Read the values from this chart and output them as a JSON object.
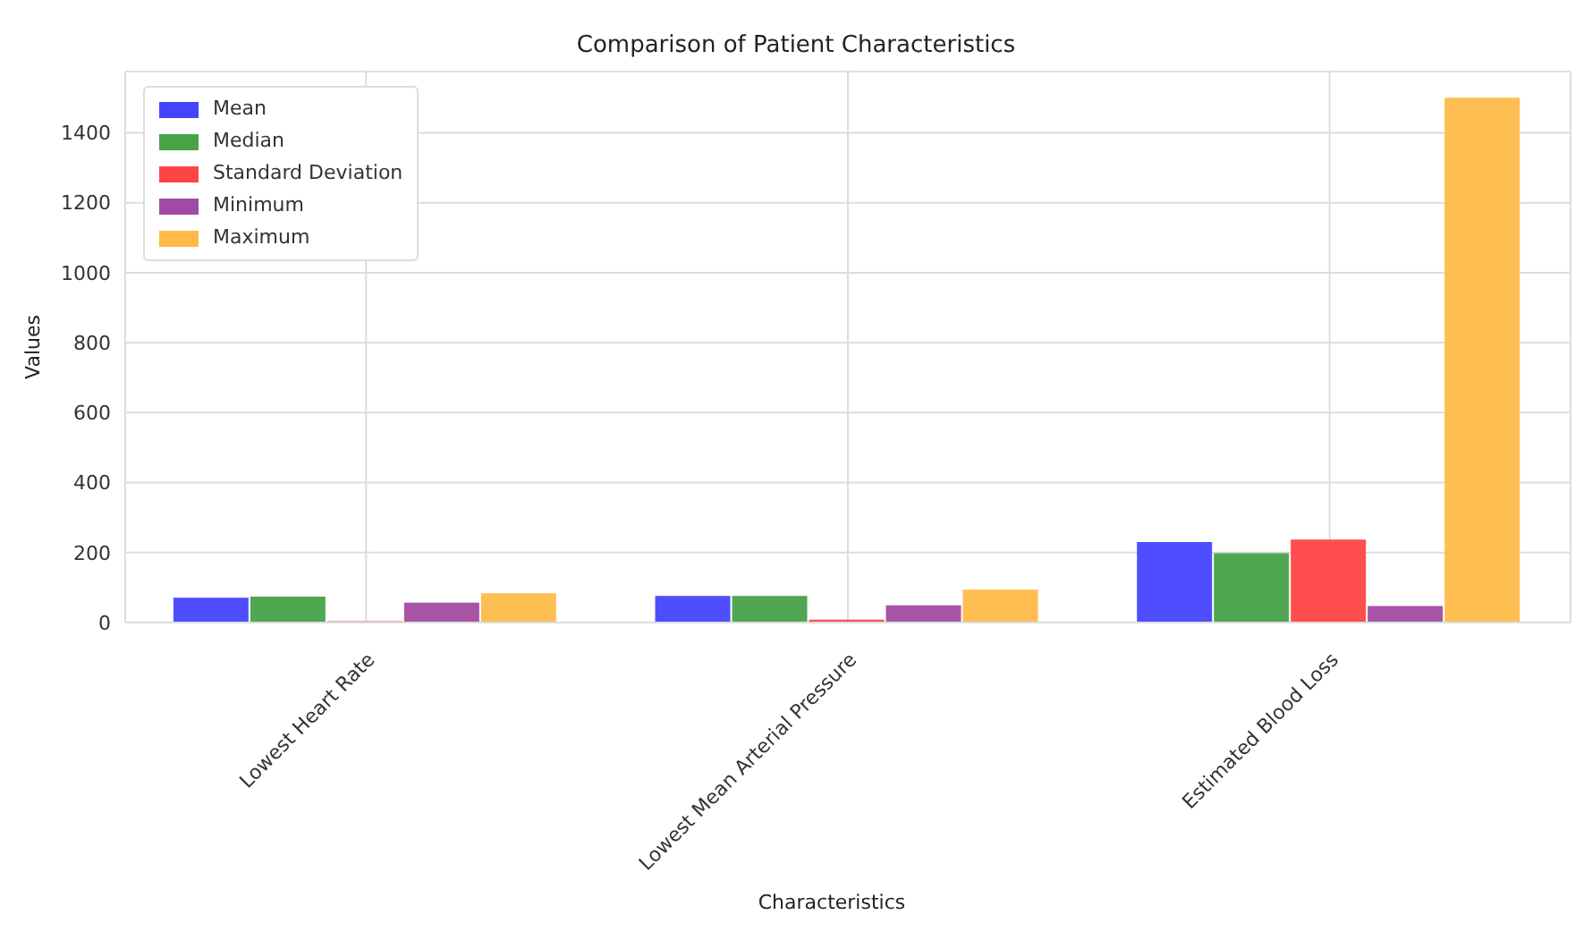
{
  "chart_data": {
    "type": "bar",
    "title": "Comparison of Patient Characteristics",
    "xlabel": "Characteristics",
    "ylabel": "Values",
    "categories": [
      "Lowest Heart Rate",
      "Lowest Mean Arterial Pressure",
      "Estimated Blood Loss"
    ],
    "series": [
      {
        "name": "Mean",
        "color": "#4444ff",
        "values": [
          71,
          76,
          230
        ]
      },
      {
        "name": "Median",
        "color": "#48a248",
        "values": [
          74,
          76,
          198
        ]
      },
      {
        "name": "Standard Deviation",
        "color": "#ff4444",
        "values": [
          4,
          8,
          237
        ]
      },
      {
        "name": "Minimum",
        "color": "#a24ba2",
        "values": [
          57,
          49,
          47
        ]
      },
      {
        "name": "Maximum",
        "color": "#ffbb48",
        "values": [
          84,
          94,
          1500
        ]
      }
    ],
    "ylim": [
      0,
      1575
    ],
    "yticks": [
      0,
      200,
      400,
      600,
      800,
      1000,
      1200,
      1400
    ],
    "grid": true,
    "legend": "top left"
  }
}
